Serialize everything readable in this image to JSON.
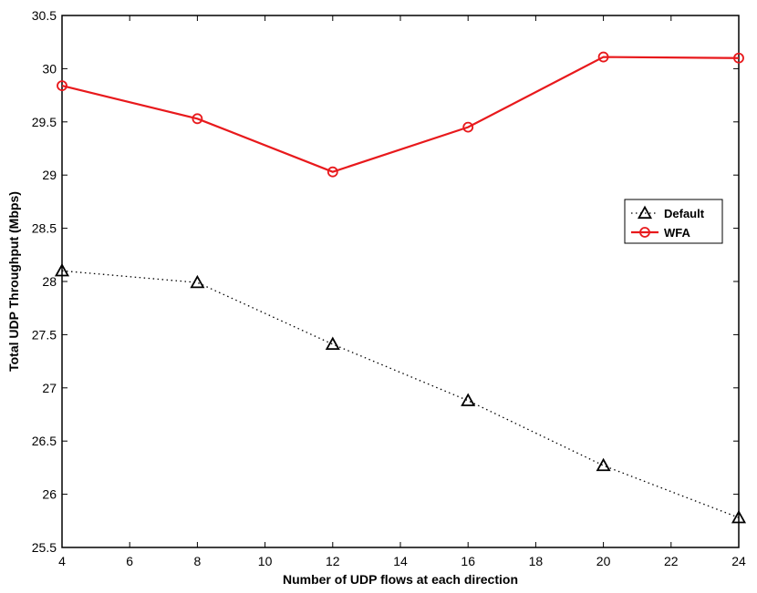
{
  "chart_data": {
    "type": "line",
    "title": "",
    "xlabel": "Number of UDP flows at each direction",
    "ylabel": "Total UDP Throughput (Mbps)",
    "xlim": [
      4,
      24
    ],
    "ylim": [
      25.5,
      30.5
    ],
    "xticks": [
      4,
      6,
      8,
      10,
      12,
      14,
      16,
      18,
      20,
      22,
      24
    ],
    "yticks": [
      25.5,
      26,
      26.5,
      27,
      27.5,
      28,
      28.5,
      29,
      29.5,
      30,
      30.5
    ],
    "xtick_labels": [
      "4",
      "6",
      "8",
      "10",
      "12",
      "14",
      "16",
      "18",
      "20",
      "22",
      "24"
    ],
    "ytick_labels": [
      "25.5",
      "26",
      "26.5",
      "27",
      "27.5",
      "28",
      "28.5",
      "29",
      "29.5",
      "30",
      "30.5"
    ],
    "x": [
      4,
      8,
      12,
      16,
      20,
      24
    ],
    "grid": false,
    "legend_position": "right",
    "series": [
      {
        "name": "Default",
        "values": [
          28.1,
          27.99,
          27.41,
          26.88,
          26.27,
          25.78
        ],
        "color": "#000000",
        "line_style": "dotted",
        "marker": "triangle"
      },
      {
        "name": "WFA",
        "values": [
          29.84,
          29.53,
          29.03,
          29.45,
          30.11,
          30.1
        ],
        "color": "#e8191c",
        "line_style": "solid",
        "marker": "circle"
      }
    ]
  }
}
